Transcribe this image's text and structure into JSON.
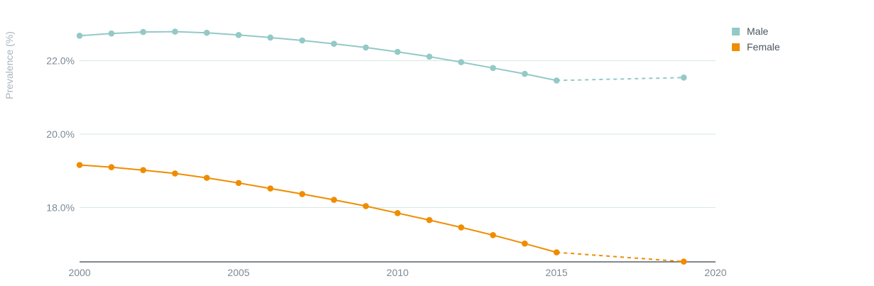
{
  "chart_data": {
    "type": "line",
    "title": "",
    "xlabel": "",
    "ylabel": "Prevalence (%)",
    "xlim": [
      2000,
      2020
    ],
    "ylim": [
      16.5,
      23.5
    ],
    "x_ticks": [
      2000,
      2005,
      2010,
      2015,
      2020
    ],
    "x_tick_labels": [
      "2000",
      "2005",
      "2010",
      "2015",
      "2020"
    ],
    "y_ticks": [
      18.0,
      20.0,
      22.0
    ],
    "y_tick_labels": [
      "18.0%",
      "20.0%",
      "22.0%"
    ],
    "grid": "horizontal",
    "legend": "top-right",
    "series": [
      {
        "name": "Male",
        "color": "#93c9c6",
        "points": [
          {
            "x": 2000,
            "y": 22.68
          },
          {
            "x": 2001,
            "y": 22.74
          },
          {
            "x": 2002,
            "y": 22.78
          },
          {
            "x": 2003,
            "y": 22.79
          },
          {
            "x": 2004,
            "y": 22.76
          },
          {
            "x": 2005,
            "y": 22.7
          },
          {
            "x": 2006,
            "y": 22.63
          },
          {
            "x": 2007,
            "y": 22.55
          },
          {
            "x": 2008,
            "y": 22.46
          },
          {
            "x": 2009,
            "y": 22.36
          },
          {
            "x": 2010,
            "y": 22.24
          },
          {
            "x": 2011,
            "y": 22.11
          },
          {
            "x": 2012,
            "y": 21.96
          },
          {
            "x": 2013,
            "y": 21.8
          },
          {
            "x": 2014,
            "y": 21.64
          },
          {
            "x": 2015,
            "y": 21.46
          },
          {
            "x": 2019,
            "y": 21.54
          }
        ],
        "dashed_from_x": 2015
      },
      {
        "name": "Female",
        "color": "#f08c00",
        "points": [
          {
            "x": 2000,
            "y": 19.16
          },
          {
            "x": 2001,
            "y": 19.1
          },
          {
            "x": 2002,
            "y": 19.02
          },
          {
            "x": 2003,
            "y": 18.93
          },
          {
            "x": 2004,
            "y": 18.81
          },
          {
            "x": 2005,
            "y": 18.67
          },
          {
            "x": 2006,
            "y": 18.52
          },
          {
            "x": 2007,
            "y": 18.37
          },
          {
            "x": 2008,
            "y": 18.21
          },
          {
            "x": 2009,
            "y": 18.04
          },
          {
            "x": 2010,
            "y": 17.85
          },
          {
            "x": 2011,
            "y": 17.66
          },
          {
            "x": 2012,
            "y": 17.46
          },
          {
            "x": 2013,
            "y": 17.25
          },
          {
            "x": 2014,
            "y": 17.02
          },
          {
            "x": 2015,
            "y": 16.78
          },
          {
            "x": 2019,
            "y": 16.53
          }
        ],
        "dashed_from_x": 2015
      }
    ]
  }
}
